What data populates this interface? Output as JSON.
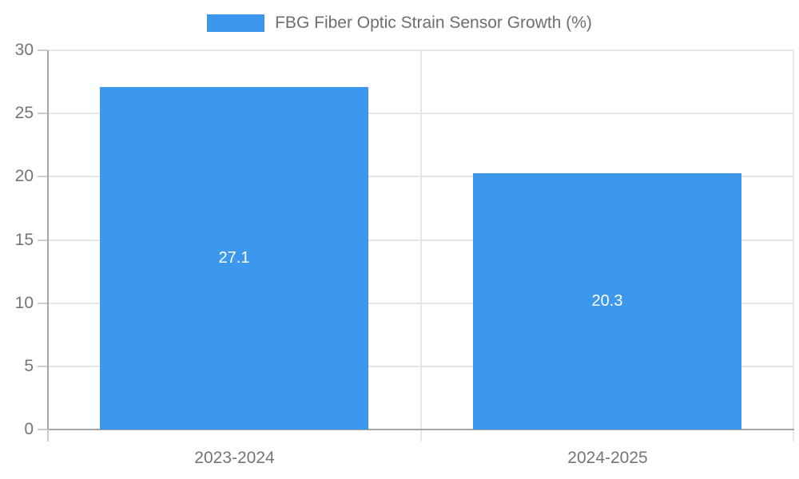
{
  "chart_data": {
    "type": "bar",
    "title": "FBG Fiber Optic Strain Sensor Growth (%)",
    "legend": {
      "position": "top",
      "entries": [
        {
          "label": "FBG Fiber Optic Strain Sensor Growth (%)",
          "color": "#3b98ec"
        }
      ]
    },
    "categories": [
      "2023-2024",
      "2024-2025"
    ],
    "values": [
      27.1,
      20.3
    ],
    "value_labels": [
      "27.1",
      "20.3"
    ],
    "xlabel": "",
    "ylabel": "",
    "ylim": [
      0,
      30
    ],
    "yticks": [
      0,
      5,
      10,
      15,
      20,
      25,
      30
    ],
    "grid": true,
    "colors": {
      "bar": "#3b98ec",
      "bar_value_text": "#ffffff",
      "grid_line": "#e6e6e6",
      "axis_line": "#a6a6a6",
      "tick_mark": "#cccccc",
      "tick_text": "#757575",
      "legend_text": "#6e6e6e"
    }
  }
}
